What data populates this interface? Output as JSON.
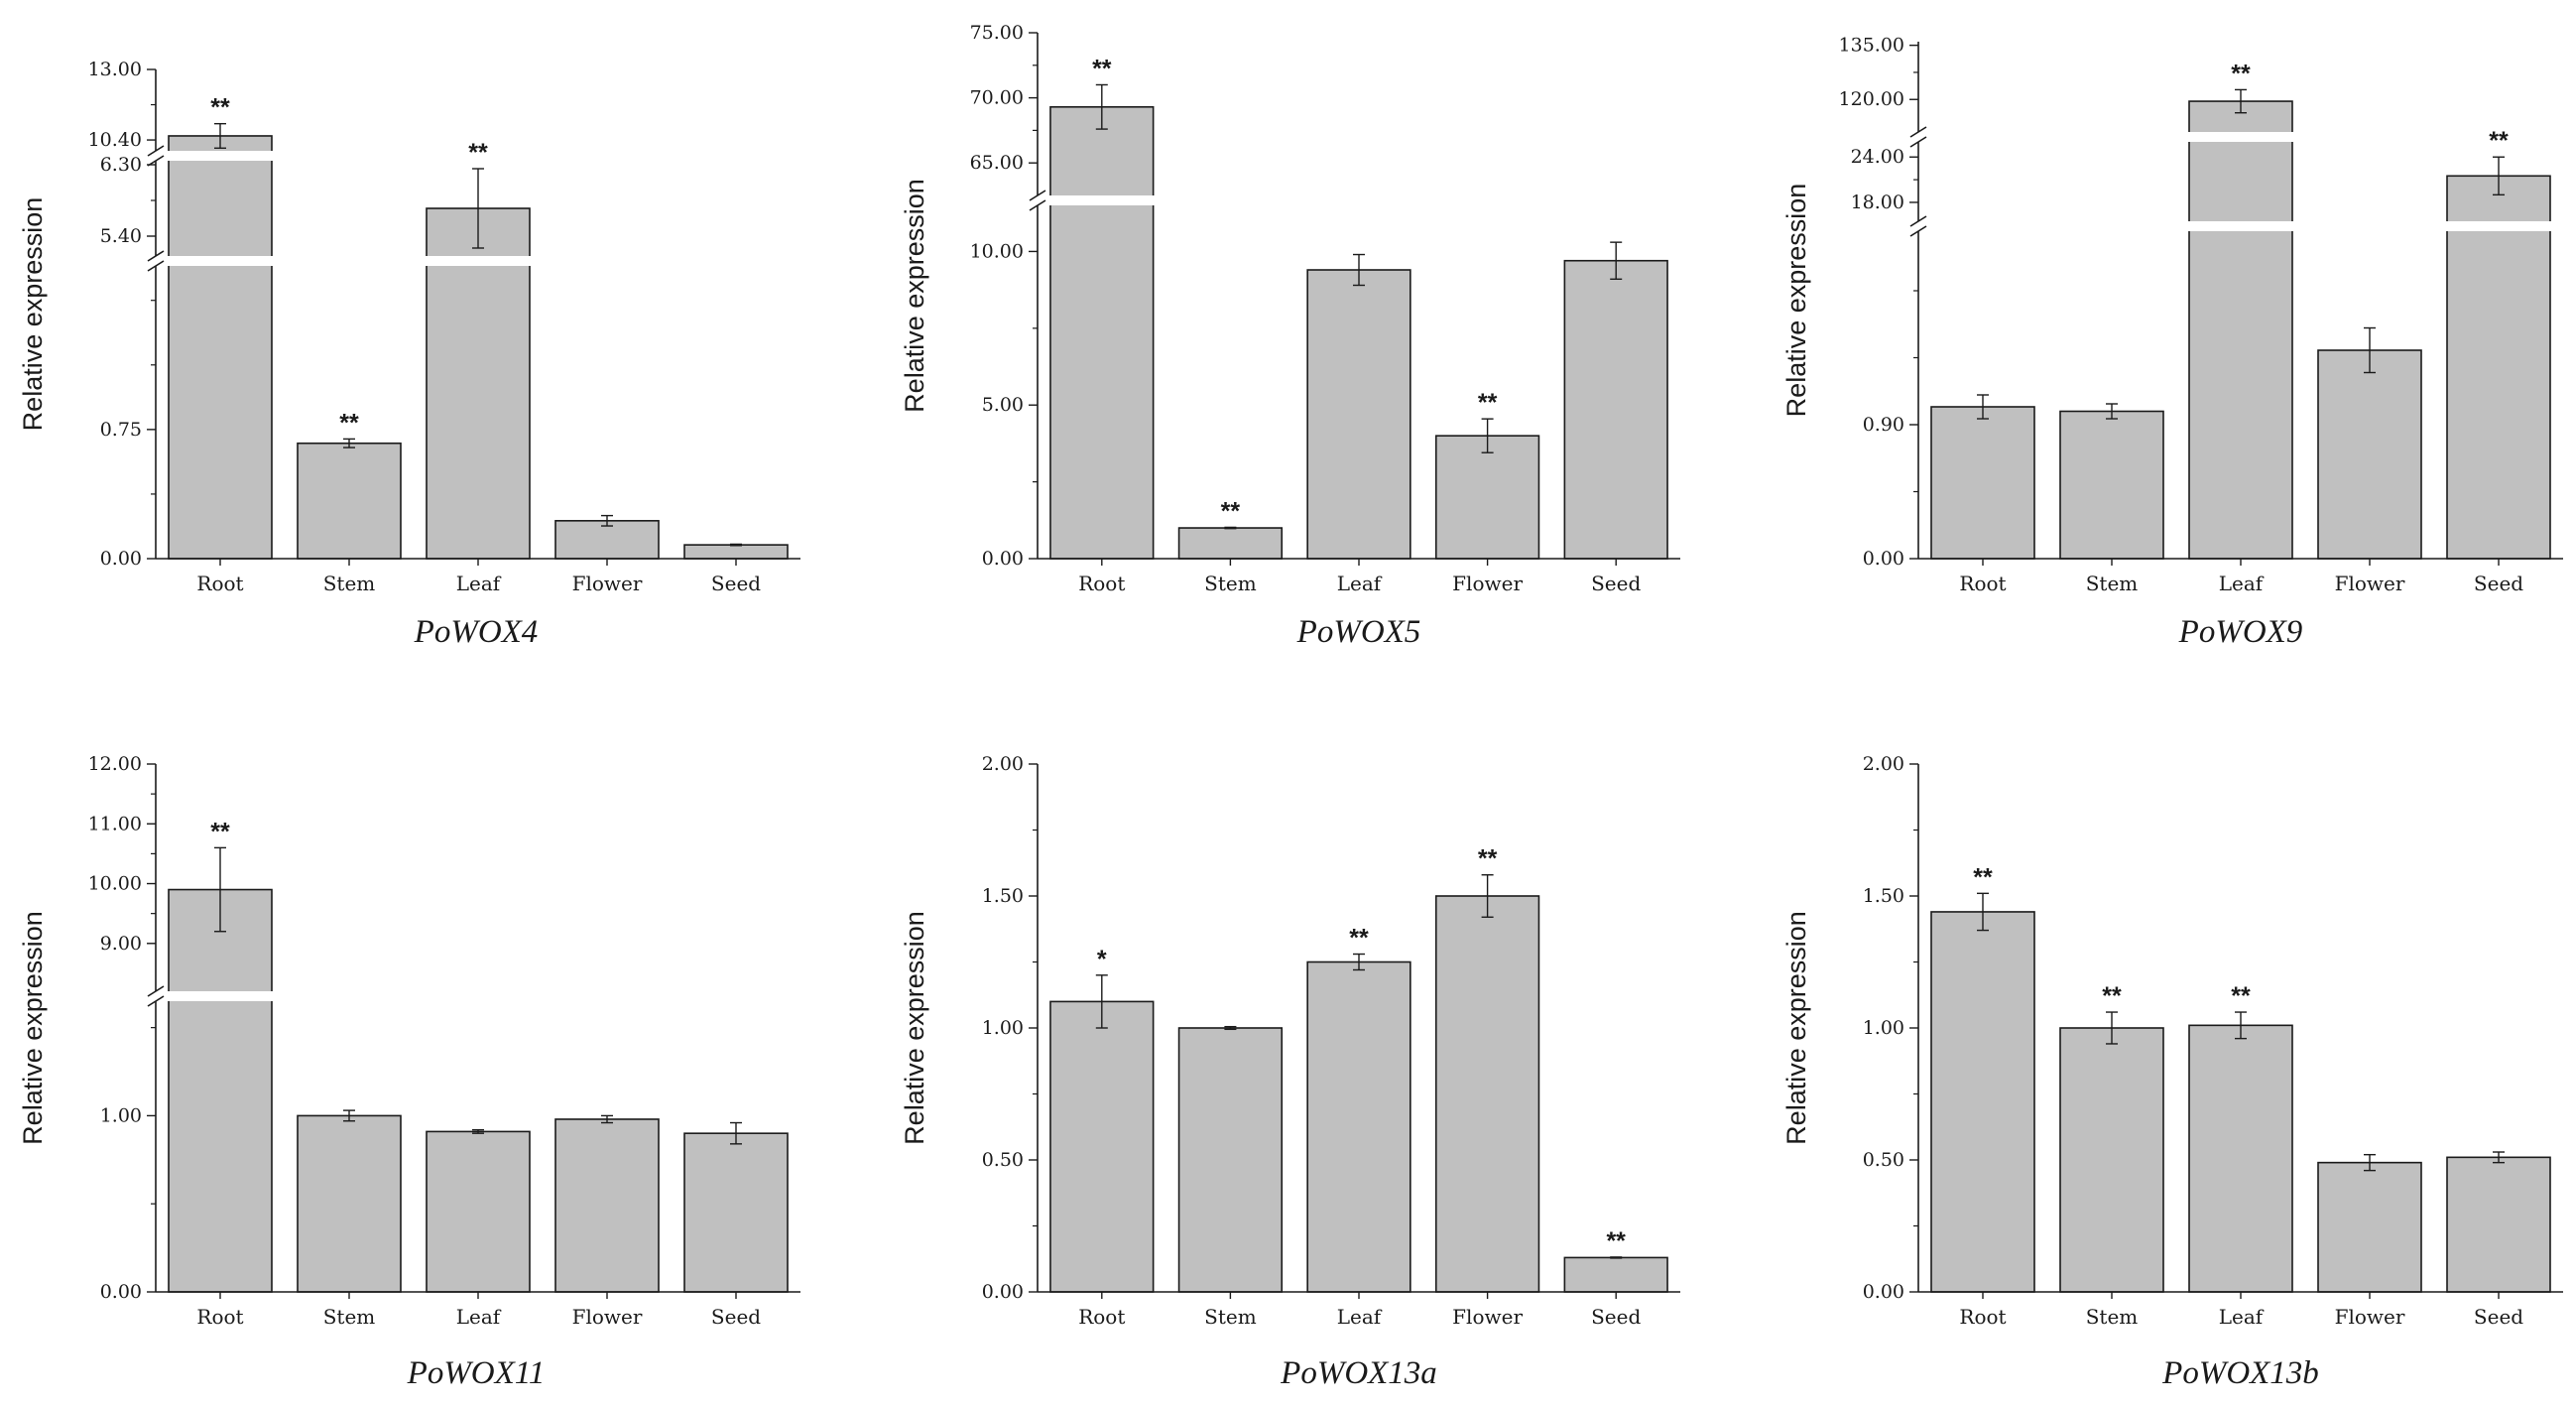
{
  "colors": {
    "bar_fill": "#c0c0c0",
    "bar_stroke": "#1a1a1a",
    "axis": "#1a1a1a",
    "background": "#ffffff"
  },
  "chart_data": [
    {
      "id": "powox4",
      "type": "bar",
      "title": "PoWOX4",
      "ylabel": "Relative expression",
      "xlabel": "",
      "categories": [
        "Root",
        "Stem",
        "Leaf",
        "Flower",
        "Seed"
      ],
      "values": [
        10.55,
        0.67,
        5.75,
        0.22,
        0.08
      ],
      "errors": [
        0.45,
        0.025,
        0.5,
        0.03,
        0.004
      ],
      "significance": [
        "**",
        "**",
        "**",
        "",
        ""
      ],
      "segments": [
        [
          0,
          1.7
        ],
        [
          5.15,
          6.35
        ],
        [
          10.0,
          13.0
        ]
      ],
      "yticks": [
        {
          "v": 0,
          "label": "0.00"
        },
        {
          "v": 0.75,
          "label": "0.75"
        },
        {
          "v": 5.4,
          "label": "5.40"
        },
        {
          "v": 6.3,
          "label": "6.30"
        },
        {
          "v": 10.4,
          "label": "10.40"
        },
        {
          "v": 13.0,
          "label": "13.00"
        }
      ],
      "yminor": [
        0.375,
        1.125,
        1.5,
        5.85,
        11.7
      ]
    },
    {
      "id": "powox5",
      "type": "bar",
      "title": "PoWOX5",
      "ylabel": "Relative expression",
      "xlabel": "",
      "categories": [
        "Root",
        "Stem",
        "Leaf",
        "Flower",
        "Seed"
      ],
      "values": [
        69.3,
        1.0,
        9.4,
        4.0,
        9.7
      ],
      "errors": [
        1.7,
        0.02,
        0.5,
        0.55,
        0.6
      ],
      "significance": [
        "**",
        "**",
        "",
        "**",
        ""
      ],
      "segments": [
        [
          0,
          11.5
        ],
        [
          62.5,
          75.0
        ]
      ],
      "yticks": [
        {
          "v": 0,
          "label": "0.00"
        },
        {
          "v": 5,
          "label": "5.00"
        },
        {
          "v": 10,
          "label": "10.00"
        },
        {
          "v": 65,
          "label": "65.00"
        },
        {
          "v": 70,
          "label": "70.00"
        },
        {
          "v": 75,
          "label": "75.00"
        }
      ],
      "yminor": [
        2.5,
        7.5,
        67.5,
        72.5
      ]
    },
    {
      "id": "powox9",
      "type": "bar",
      "title": "PoWOX9",
      "ylabel": "Relative expression",
      "xlabel": "",
      "categories": [
        "Root",
        "Stem",
        "Leaf",
        "Flower",
        "Seed"
      ],
      "values": [
        1.02,
        0.99,
        119.5,
        1.4,
        21.5
      ],
      "errors": [
        0.08,
        0.05,
        3.2,
        0.15,
        2.5
      ],
      "significance": [
        "",
        "",
        "**",
        "",
        "**"
      ],
      "segments": [
        [
          0,
          2.2
        ],
        [
          15.5,
          26.0
        ],
        [
          111.0,
          136.0
        ]
      ],
      "yticks": [
        {
          "v": 0,
          "label": "0.00"
        },
        {
          "v": 0.9,
          "label": "0.90"
        },
        {
          "v": 18,
          "label": "18.00"
        },
        {
          "v": 24,
          "label": "24.00"
        },
        {
          "v": 120,
          "label": "120.00"
        },
        {
          "v": 135,
          "label": "135.00"
        }
      ],
      "yminor": [
        0.45,
        1.35,
        1.8,
        21,
        127.5
      ]
    },
    {
      "id": "powox11",
      "type": "bar",
      "title": "PoWOX11",
      "ylabel": "Relative expression",
      "xlabel": "",
      "categories": [
        "Root",
        "Stem",
        "Leaf",
        "Flower",
        "Seed"
      ],
      "values": [
        9.9,
        1.0,
        0.91,
        0.98,
        0.9
      ],
      "errors": [
        0.7,
        0.03,
        0.01,
        0.02,
        0.06
      ],
      "significance": [
        "**",
        "",
        "",
        "",
        ""
      ],
      "segments": [
        [
          0,
          1.65
        ],
        [
          8.2,
          12.0
        ]
      ],
      "yticks": [
        {
          "v": 0,
          "label": "0.00"
        },
        {
          "v": 1,
          "label": "1.00"
        },
        {
          "v": 9,
          "label": "9.00"
        },
        {
          "v": 10,
          "label": "10.00"
        },
        {
          "v": 11,
          "label": "11.00"
        },
        {
          "v": 12,
          "label": "12.00"
        }
      ],
      "yminor": [
        0.5,
        1.5,
        9.5,
        10.5,
        11.5
      ]
    },
    {
      "id": "powox13a",
      "type": "bar",
      "title": "PoWOX13a",
      "ylabel": "Relative expression",
      "xlabel": "",
      "categories": [
        "Root",
        "Stem",
        "Leaf",
        "Flower",
        "Seed"
      ],
      "values": [
        1.1,
        1.0,
        1.25,
        1.5,
        0.13
      ],
      "errors": [
        0.1,
        0.005,
        0.03,
        0.08,
        0.002
      ],
      "significance": [
        "*",
        "",
        "**",
        "**",
        "**"
      ],
      "segments": [
        [
          0,
          2.0
        ]
      ],
      "yticks": [
        {
          "v": 0,
          "label": "0.00"
        },
        {
          "v": 0.5,
          "label": "0.50"
        },
        {
          "v": 1.0,
          "label": "1.00"
        },
        {
          "v": 1.5,
          "label": "1.50"
        },
        {
          "v": 2.0,
          "label": "2.00"
        }
      ],
      "yminor": [
        0.25,
        0.75,
        1.25,
        1.75
      ]
    },
    {
      "id": "powox13b",
      "type": "bar",
      "title": "PoWOX13b",
      "ylabel": "Relative expression",
      "xlabel": "",
      "categories": [
        "Root",
        "Stem",
        "Leaf",
        "Flower",
        "Seed"
      ],
      "values": [
        1.44,
        1.0,
        1.01,
        0.49,
        0.51
      ],
      "errors": [
        0.07,
        0.06,
        0.05,
        0.03,
        0.02
      ],
      "significance": [
        "**",
        "**",
        "**",
        "",
        ""
      ],
      "segments": [
        [
          0,
          2.0
        ]
      ],
      "yticks": [
        {
          "v": 0,
          "label": "0.00"
        },
        {
          "v": 0.5,
          "label": "0.50"
        },
        {
          "v": 1.0,
          "label": "1.00"
        },
        {
          "v": 1.5,
          "label": "1.50"
        },
        {
          "v": 2.0,
          "label": "2.00"
        }
      ],
      "yminor": [
        0.25,
        0.75,
        1.25,
        1.75
      ]
    }
  ]
}
